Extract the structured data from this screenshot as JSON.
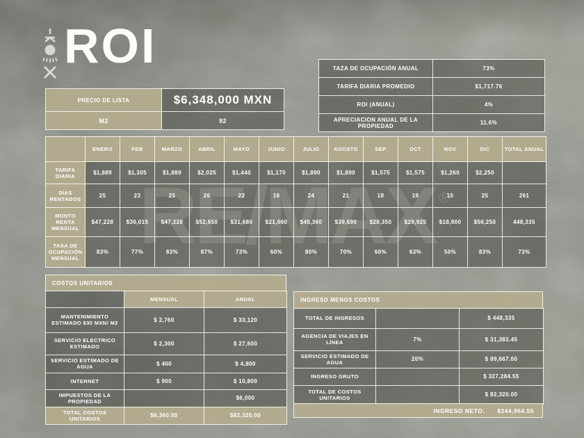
{
  "page": {
    "title": "ROI"
  },
  "watermark": {
    "text": "RE/MAX",
    "registered": "®"
  },
  "colors": {
    "accent_tan": "#b3ab8e",
    "cell_overlay": "rgba(47,51,42,0.42)",
    "border": "#fcfcf8",
    "text": "#ffffff",
    "background": "#90948a"
  },
  "summary_table": {
    "rows": [
      {
        "label": "TAZA DE OCUPACIÓN ANUAL",
        "value": "73%"
      },
      {
        "label": "TARIFA DIARIA PROMEDIO",
        "value": "$1,717.76"
      },
      {
        "label": "ROI (ANUAL)",
        "value": "4%"
      },
      {
        "label": "APRECIACION ANUAL DE LA PROPIEDAD",
        "value": "11.6%"
      }
    ]
  },
  "price_table": {
    "rows": [
      {
        "label": "PRECIO DE LISTA",
        "value": "$6,348,000 MXN"
      },
      {
        "label": "M2",
        "value": "92"
      }
    ]
  },
  "monthly_table": {
    "columns": [
      "ENERO",
      "FEB",
      "MARZO",
      "ABRIL",
      "MAYO",
      "JUNIO",
      "JULIO",
      "AGOSTO",
      "SEP",
      "OCT",
      "NOV",
      "DIC",
      "TOTAL ANUAL"
    ],
    "rows": [
      {
        "label": "TARIFA DIARIA",
        "values": [
          "$1,889",
          "$1,305",
          "$1,889",
          "$2,025",
          "$1,440",
          "$1,170",
          "$1,890",
          "$1,890",
          "$1,575",
          "$1,575",
          "$1,260",
          "$2,250",
          ""
        ]
      },
      {
        "label": "DÍAS RENTADOS",
        "values": [
          "25",
          "23",
          "25",
          "26",
          "22",
          "18",
          "24",
          "21",
          "18",
          "19",
          "15",
          "25",
          "261"
        ]
      },
      {
        "label": "MONTO RENTA MENSUAL",
        "values": [
          "$47,228",
          "$30,015",
          "$47,228",
          "$52,650",
          "$31,680",
          "$21,060",
          "$45,360",
          "$39,690",
          "$28,350",
          "$29,925",
          "$18,900",
          "$56,250",
          "448,335"
        ]
      },
      {
        "label": "TASA DE OCUPACIÓN MENSUAL",
        "values": [
          "83%",
          "77%",
          "83%",
          "87%",
          "73%",
          "60%",
          "80%",
          "70%",
          "60%",
          "63%",
          "50%",
          "83%",
          "73%"
        ]
      }
    ]
  },
  "costs_table": {
    "title": "COSTOS UNITARIOS",
    "columns": [
      "MENSUAL",
      "ANUAL"
    ],
    "rows": [
      {
        "label": "MANTENIMIENTO ESTIMADO $30 MXN/ M2",
        "mensual": "$ 2,760",
        "anual": "$ 33,120"
      },
      {
        "label": "SERVICIO ELECTRICO ESTIMADO",
        "mensual": "$ 2,300",
        "anual": "$ 27,600"
      },
      {
        "label": "SERVICIO ESTIMADO DE AGUA",
        "mensual": "$ 400",
        "anual": "$ 4,800"
      },
      {
        "label": "INTERNET",
        "mensual": "$ 900",
        "anual": "$ 10,800"
      },
      {
        "label": "IMPUESTOS DE LA PROPIEDAD",
        "mensual": "",
        "anual": "$6,000"
      }
    ],
    "footer": {
      "label": "TOTAL COSTOS UNITARIOS",
      "mensual": "$6,360.00",
      "anual": "$82,320.00"
    }
  },
  "income_table": {
    "title": "INGRESO MENOS COSTOS",
    "rows": [
      {
        "label": "TOTAL DE INGRESOS",
        "pct": "",
        "value": "$ 448,335"
      },
      {
        "label": "AGENCIA DE VIAJES EN LÍNEA",
        "pct": "7%",
        "value": "$ 31,383.45"
      },
      {
        "label": "SERVICIO ESTIMADO DE AGUA",
        "pct": "20%",
        "value": "$ 89,667.00"
      },
      {
        "label": "INGRESO GRUTO",
        "pct": "",
        "value": "$ 327,284.55"
      },
      {
        "label": "TOTAL DE COSTOS UNITARIOS",
        "pct": "",
        "value": "$ 82,320.00"
      }
    ],
    "footer": {
      "label": "INGRESO NETO.",
      "value": "$244,964.55"
    }
  }
}
